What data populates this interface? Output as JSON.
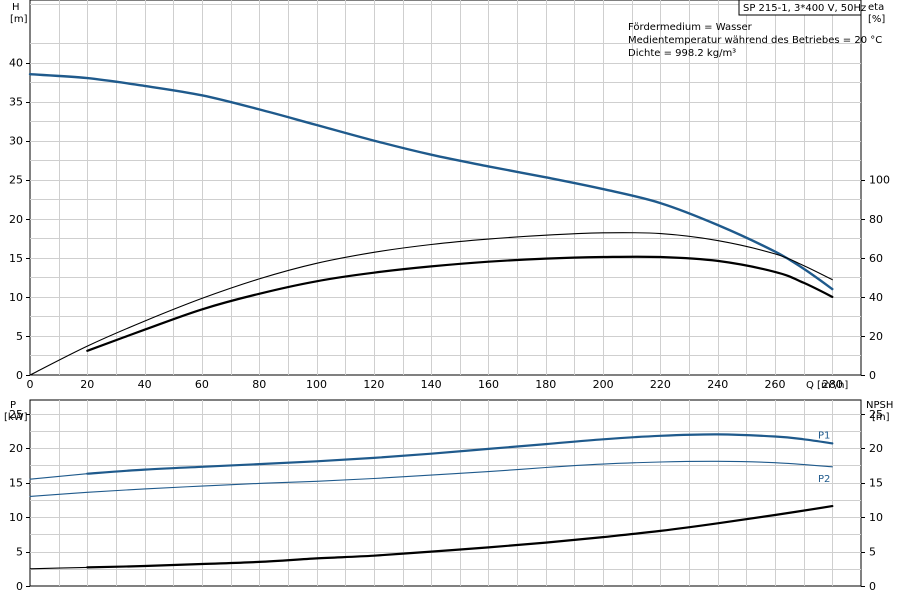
{
  "header": {
    "pump": "SP 215-1, 3*400 V, 50Hz",
    "medium": "Fördermedium = Wasser",
    "temperature": "Medientemperatur während des Betriebes = 20 °C",
    "density": "Dichte = 998.2 kg/m³"
  },
  "colors": {
    "blue": "#1f5a8c",
    "black": "#000000",
    "grid": "#cfcfcf"
  },
  "chart_data": [
    {
      "type": "line",
      "name": "head-efficiency",
      "xlabel": "Q [m³/h]",
      "ylabel_left": [
        "H",
        "[m]"
      ],
      "ylabel_right": [
        "eta",
        "[%]"
      ],
      "xlim": [
        0,
        290
      ],
      "x_ticks": [
        0,
        20,
        40,
        60,
        80,
        100,
        120,
        140,
        160,
        180,
        200,
        220,
        240,
        260,
        280
      ],
      "ylim_left": [
        0,
        48
      ],
      "y_ticks_left": [
        0,
        5,
        10,
        15,
        20,
        25,
        30,
        35,
        40
      ],
      "ylim_right": [
        0,
        192
      ],
      "y_ticks_right": [
        0,
        20,
        40,
        60,
        80,
        100
      ],
      "grid": true,
      "series": [
        {
          "axis": "left",
          "color": "blue",
          "width": 2.4,
          "x": [
            0,
            20,
            40,
            60,
            80,
            100,
            120,
            140,
            160,
            180,
            200,
            220,
            240,
            260,
            270,
            280
          ],
          "y": [
            38.5,
            38,
            37,
            35.8,
            34,
            32,
            30,
            28.2,
            26.7,
            25.3,
            23.8,
            22,
            19.2,
            15.8,
            13.6,
            11
          ]
        },
        {
          "axis": "left",
          "color": "black",
          "width": 1.1,
          "x": [
            0,
            20,
            40,
            60,
            80,
            100,
            120,
            140,
            160,
            180,
            200,
            220,
            240,
            260,
            270,
            280
          ],
          "y": [
            0,
            3.7,
            6.9,
            9.8,
            12.3,
            14.3,
            15.7,
            16.7,
            17.4,
            17.9,
            18.2,
            18.1,
            17.2,
            15.5,
            14,
            12.2
          ]
        },
        {
          "axis": "left",
          "color": "black",
          "width": 2.2,
          "x": [
            20,
            40,
            60,
            80,
            100,
            120,
            140,
            160,
            180,
            200,
            220,
            240,
            260,
            270,
            280
          ],
          "y": [
            3.1,
            5.8,
            8.4,
            10.4,
            12,
            13.1,
            13.9,
            14.5,
            14.9,
            15.1,
            15.1,
            14.6,
            13.2,
            11.8,
            10
          ]
        }
      ]
    },
    {
      "type": "line",
      "name": "power-npsh",
      "xlim": [
        0,
        290
      ],
      "x_ticks": [
        0,
        20,
        40,
        60,
        80,
        100,
        120,
        140,
        160,
        180,
        200,
        220,
        240,
        260,
        280
      ],
      "ylabel_left": [
        "P",
        "[kW]"
      ],
      "ylabel_right": [
        "NPSH",
        "[m]"
      ],
      "ylim_left": [
        0,
        27
      ],
      "y_ticks_left": [
        0,
        5,
        10,
        15,
        20,
        25
      ],
      "ylim_right": [
        0,
        27
      ],
      "y_ticks_right": [
        0,
        5,
        10,
        15,
        20,
        25
      ],
      "grid": true,
      "series": [
        {
          "name": "P1",
          "axis": "left",
          "color": "blue",
          "width": 1.1,
          "x": [
            0,
            20
          ],
          "y": [
            15.5,
            16.3
          ]
        },
        {
          "name": "P1",
          "axis": "left",
          "color": "blue",
          "width": 2.2,
          "label": "P1",
          "x": [
            20,
            40,
            60,
            80,
            100,
            120,
            140,
            160,
            180,
            200,
            220,
            240,
            260,
            270,
            280
          ],
          "y": [
            16.3,
            16.9,
            17.3,
            17.7,
            18.1,
            18.6,
            19.2,
            19.9,
            20.6,
            21.3,
            21.8,
            22,
            21.7,
            21.3,
            20.7
          ]
        },
        {
          "name": "P2",
          "axis": "left",
          "color": "blue",
          "width": 1.1,
          "label": "P2",
          "x": [
            0,
            20,
            40,
            60,
            80,
            100,
            120,
            140,
            160,
            180,
            200,
            220,
            240,
            260,
            280
          ],
          "y": [
            13,
            13.6,
            14.1,
            14.5,
            14.9,
            15.2,
            15.6,
            16.1,
            16.6,
            17.2,
            17.7,
            18,
            18.1,
            17.9,
            17.3
          ]
        },
        {
          "axis": "right",
          "color": "black",
          "width": 1.1,
          "x": [
            0,
            20
          ],
          "y": [
            2.5,
            2.7
          ]
        },
        {
          "axis": "right",
          "color": "black",
          "width": 2.2,
          "x": [
            20,
            40,
            60,
            80,
            100,
            120,
            140,
            160,
            180,
            200,
            220,
            240,
            260,
            280
          ],
          "y": [
            2.7,
            2.9,
            3.2,
            3.5,
            4,
            4.4,
            5,
            5.6,
            6.3,
            7.1,
            8,
            9.1,
            10.3,
            11.6
          ]
        }
      ]
    }
  ]
}
